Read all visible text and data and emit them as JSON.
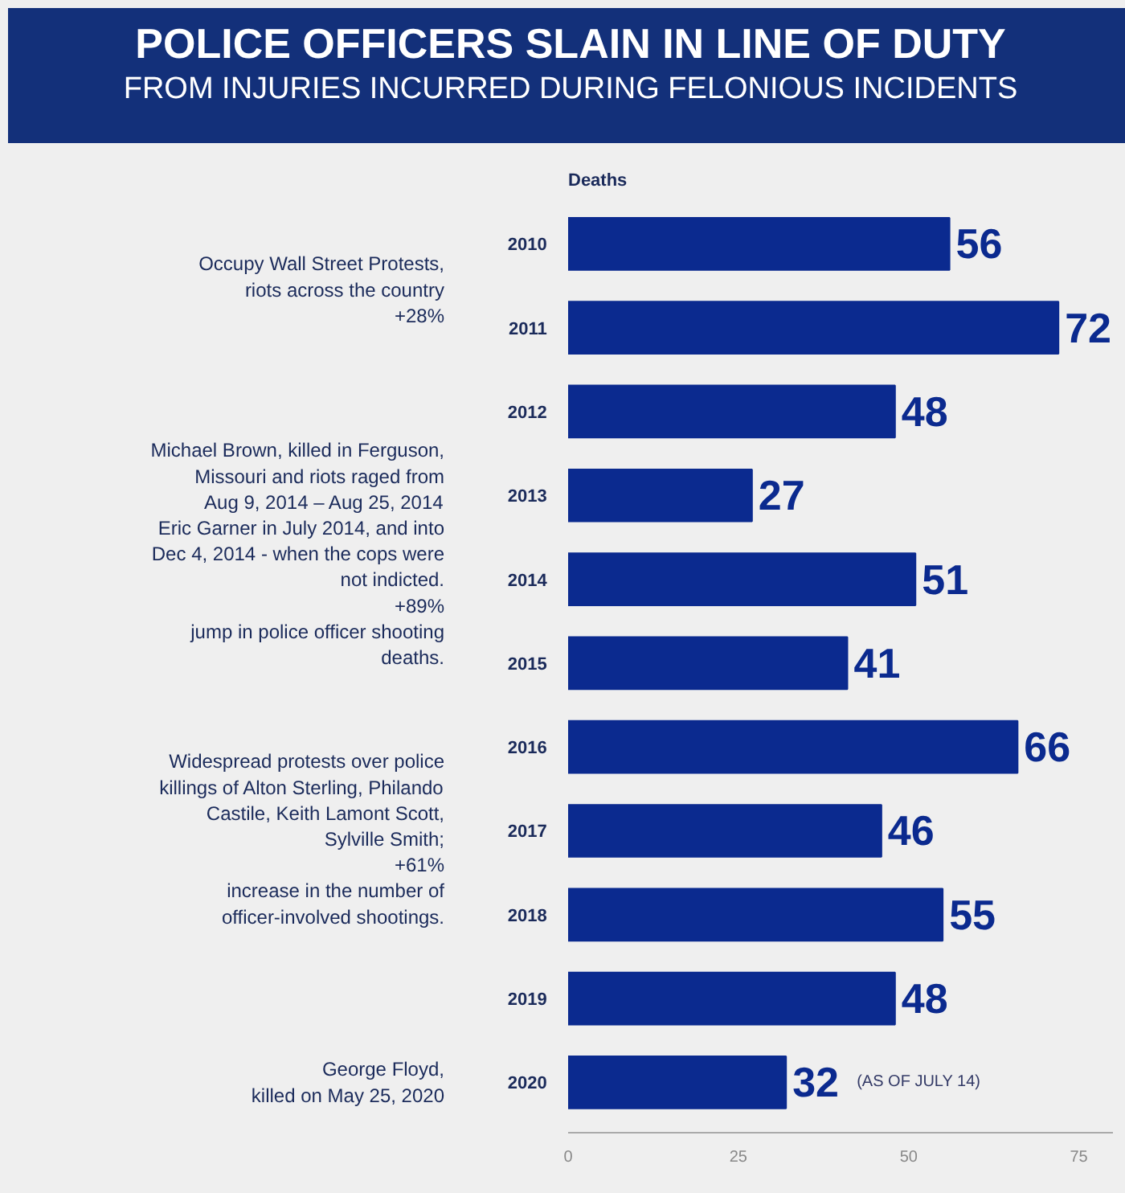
{
  "chart_data": {
    "type": "bar",
    "orientation": "horizontal",
    "title": "POLICE OFFICERS SLAIN IN LINE OF DUTY",
    "subtitle": "FROM INJURIES INCURRED DURING FELONIOUS INCIDENTS",
    "xlabel": "Deaths",
    "categories": [
      "2010",
      "2011",
      "2012",
      "2013",
      "2014",
      "2015",
      "2016",
      "2017",
      "2018",
      "2019",
      "2020"
    ],
    "values": [
      56,
      72,
      48,
      27,
      51,
      41,
      66,
      46,
      55,
      48,
      32
    ],
    "color": "#0b2a8f",
    "data_labels": true,
    "xlim": [
      0,
      80
    ],
    "xticks": [
      0,
      25,
      50,
      75
    ],
    "grid": false,
    "annotations": [
      "Occupy Wall Street Protests,\nriots across the country\n+28%",
      "Michael Brown, killed in Ferguson,\nMissouri and riots raged from\nAug 9, 2014 – Aug 25, 2014\nEric Garner in July 2014, and into\nDec 4, 2014 - when the cops were\nnot indicted.\n+89%\njump in police officer shooting\ndeaths.",
      "Widespread protests over police\nkillings of Alton Sterling, Philando\nCastile, Keith Lamont Scott,\nSylville Smith;\n+61%\nincrease in the number of\nofficer-involved shootings.",
      "George Floyd,\nkilled on May 25, 2020",
      "(AS OF JULY 14)"
    ]
  }
}
